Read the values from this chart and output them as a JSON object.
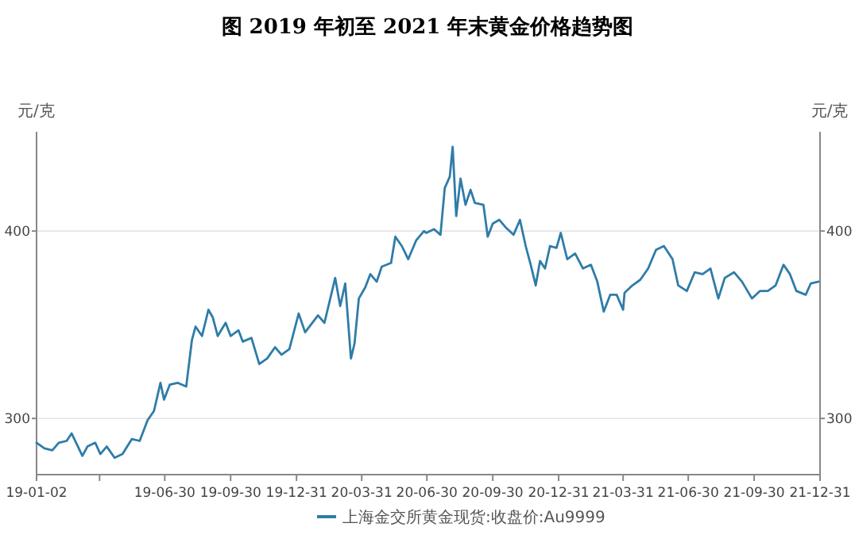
{
  "chart_data": {
    "type": "line",
    "title": "图  2019 年初至 2021 年末黄金价格趋势图",
    "ylabel": "元/克",
    "y2label": "元/克",
    "x": [
      "2019-01-02",
      "2019-01-13",
      "2019-01-24",
      "2019-02-02",
      "2019-02-13",
      "2019-02-20",
      "2019-03-07",
      "2019-03-14",
      "2019-03-25",
      "2019-04-01",
      "2019-04-10",
      "2019-04-21",
      "2019-05-02",
      "2019-05-15",
      "2019-05-26",
      "2019-06-06",
      "2019-06-15",
      "2019-06-24",
      "2019-06-29",
      "2019-07-07",
      "2019-07-18",
      "2019-07-30",
      "2019-08-07",
      "2019-08-12",
      "2019-08-21",
      "2019-08-30",
      "2019-09-05",
      "2019-09-12",
      "2019-09-23",
      "2019-09-30",
      "2019-10-11",
      "2019-10-17",
      "2019-10-29",
      "2019-11-09",
      "2019-11-20",
      "2019-12-01",
      "2019-12-10",
      "2019-12-21",
      "2020-01-03",
      "2020-01-12",
      "2020-01-30",
      "2020-02-08",
      "2020-02-23",
      "2020-03-01",
      "2020-03-08",
      "2020-03-16",
      "2020-03-21",
      "2020-03-27",
      "2020-04-05",
      "2020-04-12",
      "2020-04-21",
      "2020-04-28",
      "2020-05-11",
      "2020-05-17",
      "2020-05-26",
      "2020-06-04",
      "2020-06-15",
      "2020-06-26",
      "2020-06-29",
      "2020-07-10",
      "2020-07-19",
      "2020-07-25",
      "2020-08-01",
      "2020-08-05",
      "2020-08-10",
      "2020-08-16",
      "2020-08-23",
      "2020-08-30",
      "2020-09-05",
      "2020-09-17",
      "2020-09-23",
      "2020-09-30",
      "2020-10-09",
      "2020-10-18",
      "2020-10-29",
      "2020-11-07",
      "2020-11-15",
      "2020-11-22",
      "2020-11-29",
      "2020-12-05",
      "2020-12-12",
      "2020-12-19",
      "2020-12-28",
      "2021-01-03",
      "2021-01-12",
      "2021-01-23",
      "2021-02-03",
      "2021-02-14",
      "2021-02-23",
      "2021-03-04",
      "2021-03-13",
      "2021-03-22",
      "2021-03-31",
      "2021-04-02",
      "2021-04-13",
      "2021-04-24",
      "2021-05-05",
      "2021-05-16",
      "2021-05-27",
      "2021-06-08",
      "2021-06-16",
      "2021-06-28",
      "2021-07-09",
      "2021-07-20",
      "2021-07-31",
      "2021-08-11",
      "2021-08-20",
      "2021-09-02",
      "2021-09-13",
      "2021-09-27",
      "2021-10-08",
      "2021-10-19",
      "2021-10-30",
      "2021-11-10",
      "2021-11-19",
      "2021-11-28",
      "2021-12-11",
      "2021-12-18",
      "2021-12-29"
    ],
    "series": [
      {
        "name": "上海金交所黄金现货:收盘价:Au9999",
        "color": "#2f7ca8",
        "values": [
          287,
          284,
          283,
          287,
          288,
          292,
          280,
          285,
          287,
          281,
          285,
          279,
          281,
          289,
          288,
          299,
          304,
          319,
          310,
          318,
          319,
          317,
          342,
          349,
          344,
          358,
          354,
          344,
          351,
          344,
          347,
          341,
          343,
          329,
          332,
          338,
          334,
          337,
          356,
          346,
          355,
          351,
          375,
          360,
          372,
          332,
          340,
          364,
          370,
          377,
          373,
          381,
          383,
          397,
          392,
          385,
          395,
          400,
          399,
          401,
          398,
          423,
          429,
          445,
          408,
          428,
          414,
          422,
          415,
          414,
          397,
          404,
          406,
          402,
          398,
          406,
          392,
          382,
          371,
          384,
          380,
          392,
          391,
          399,
          385,
          388,
          380,
          382,
          373,
          357,
          366,
          366,
          358,
          367,
          371,
          374,
          380,
          390,
          392,
          385,
          371,
          368,
          378,
          377,
          380,
          364,
          375,
          378,
          373,
          364,
          368,
          368,
          371,
          382,
          377,
          368,
          366,
          372,
          373
        ]
      }
    ],
    "xlim": [
      "2019-01-02",
      "2021-12-31"
    ],
    "xticks": [
      {
        "value": "2019-01-02",
        "label": "19-01-02"
      },
      {
        "value": "2019-03-31",
        "label": null
      },
      {
        "value": "2019-06-30",
        "label": "19-06-30"
      },
      {
        "value": "2019-09-30",
        "label": "19-09-30"
      },
      {
        "value": "2019-12-31",
        "label": "19-12-31"
      },
      {
        "value": "2020-03-31",
        "label": "20-03-31"
      },
      {
        "value": "2020-06-30",
        "label": "20-06-30"
      },
      {
        "value": "2020-09-30",
        "label": "20-09-30"
      },
      {
        "value": "2020-12-31",
        "label": "20-12-31"
      },
      {
        "value": "2021-03-31",
        "label": "21-03-31"
      },
      {
        "value": "2021-06-30",
        "label": "21-06-30"
      },
      {
        "value": "2021-09-30",
        "label": "21-09-30"
      },
      {
        "value": "2021-12-31",
        "label": "21-12-31"
      }
    ],
    "ylim": [
      270,
      453
    ],
    "yticks": [
      300,
      400
    ],
    "y2lim": [
      270,
      453
    ],
    "y2ticks": [
      300,
      400
    ],
    "grid": "y",
    "legend": "bottom",
    "marker": "none",
    "line_style": "solid"
  }
}
